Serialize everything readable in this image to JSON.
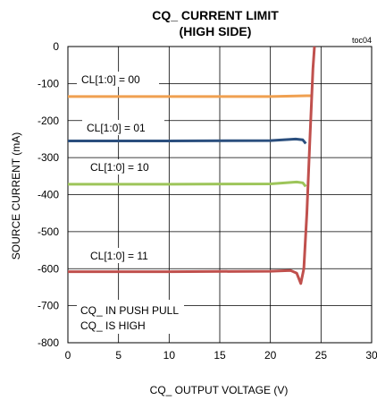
{
  "chart_data": {
    "type": "line",
    "title_line1": "CQ_ CURRENT LIMIT",
    "title_line2": "(HIGH SIDE)",
    "tag": "toc04",
    "xlabel": "CQ_ OUTPUT VOLTAGE (V)",
    "ylabel": "SOURCE CURRENT (mA)",
    "xlim": [
      0,
      30
    ],
    "ylim": [
      -800,
      0
    ],
    "xticks": [
      0,
      5,
      10,
      15,
      20,
      25,
      30
    ],
    "yticks": [
      0,
      -100,
      -200,
      -300,
      -400,
      -500,
      -600,
      -700,
      -800
    ],
    "grid": true,
    "series": [
      {
        "name": "CL[1:0] = 00",
        "color": "#f0a050",
        "points": [
          [
            0,
            -135
          ],
          [
            10,
            -135
          ],
          [
            20,
            -135
          ],
          [
            23.6,
            -133
          ],
          [
            24.0,
            -133
          ]
        ]
      },
      {
        "name": "CL[1:0] = 01",
        "color": "#2b4f7e",
        "points": [
          [
            0,
            -255
          ],
          [
            10,
            -255
          ],
          [
            20,
            -254
          ],
          [
            22.5,
            -250
          ],
          [
            23.2,
            -252
          ],
          [
            23.5,
            -262
          ]
        ]
      },
      {
        "name": "CL[1:0] = 10",
        "color": "#9dc55a",
        "points": [
          [
            0,
            -372
          ],
          [
            10,
            -372
          ],
          [
            20,
            -371
          ],
          [
            22.6,
            -366
          ],
          [
            23.2,
            -368
          ],
          [
            23.5,
            -378
          ]
        ]
      },
      {
        "name": "CL[1:0] = 11",
        "color": "#c0504d",
        "points": [
          [
            0,
            -608
          ],
          [
            10,
            -608
          ],
          [
            20,
            -607
          ],
          [
            22.0,
            -605
          ],
          [
            22.6,
            -612
          ],
          [
            23.0,
            -640
          ],
          [
            23.3,
            -600
          ],
          [
            23.6,
            -450
          ],
          [
            23.9,
            -250
          ],
          [
            24.2,
            -60
          ],
          [
            24.35,
            0
          ]
        ]
      }
    ],
    "annotation_lines": [
      "CQ_ IN PUSH PULL",
      "CQ_ IS HIGH"
    ]
  }
}
